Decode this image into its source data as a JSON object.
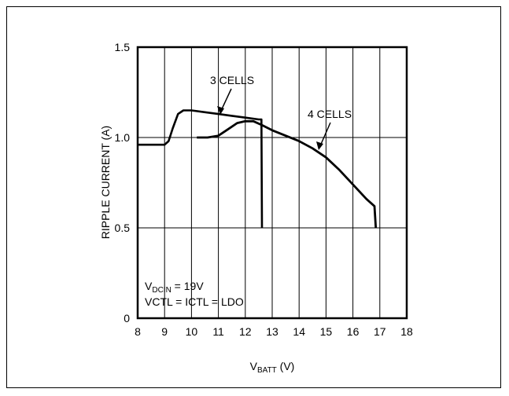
{
  "chart_data": {
    "type": "line",
    "xlabel": "V",
    "xlabel_sub": "BATT",
    "xlabel_unit": " (V)",
    "ylabel": "RIPPLE CURRENT (A)",
    "xlim": [
      8,
      18
    ],
    "ylim": [
      0,
      1.5
    ],
    "x_ticks": [
      "8",
      "9",
      "10",
      "11",
      "12",
      "13",
      "14",
      "15",
      "16",
      "17",
      "18"
    ],
    "y_ticks": [
      "0",
      "0.5",
      "1.0",
      "1.5"
    ],
    "grid": true,
    "series": [
      {
        "name": "3 CELLS",
        "x": [
          8.0,
          8.5,
          9.0,
          9.15,
          9.3,
          9.5,
          9.7,
          10.0,
          10.5,
          11.0,
          11.5,
          12.0,
          12.5,
          12.6,
          12.62
        ],
        "y": [
          0.96,
          0.96,
          0.96,
          0.98,
          1.05,
          1.13,
          1.15,
          1.15,
          1.14,
          1.13,
          1.12,
          1.11,
          1.1,
          1.1,
          0.5
        ]
      },
      {
        "name": "4 CELLS",
        "x": [
          10.2,
          10.6,
          11.0,
          11.3,
          11.7,
          12.0,
          12.3,
          12.6,
          13.0,
          13.5,
          14.0,
          14.5,
          15.0,
          15.5,
          16.0,
          16.5,
          16.8,
          16.85
        ],
        "y": [
          1.0,
          1.0,
          1.01,
          1.04,
          1.08,
          1.09,
          1.09,
          1.07,
          1.04,
          1.01,
          0.98,
          0.94,
          0.89,
          0.82,
          0.74,
          0.66,
          0.62,
          0.5
        ]
      }
    ],
    "annotations": {
      "three_cells": "3 CELLS",
      "four_cells": "4 CELLS",
      "cond1_main": "V",
      "cond1_sub": "DCIN",
      "cond1_rest": " = 19V",
      "cond2": "VCTL = ICTL = LDO"
    }
  }
}
